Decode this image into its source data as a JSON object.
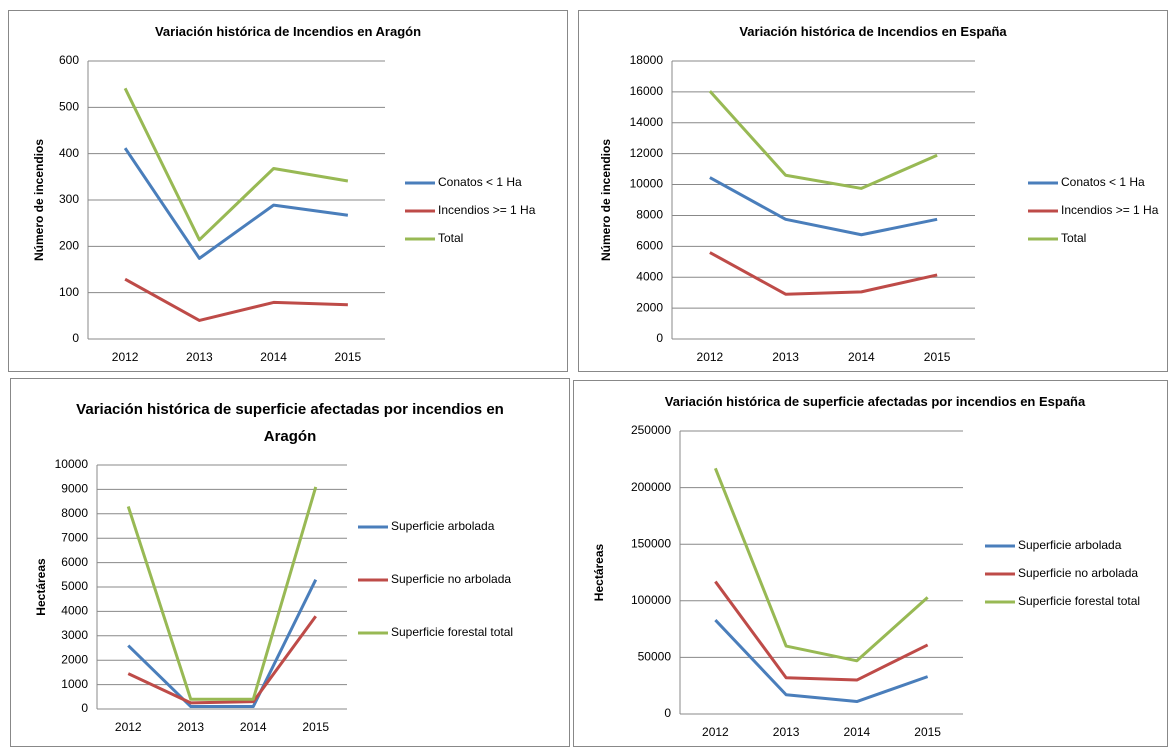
{
  "chart_data": [
    {
      "type": "line",
      "title": "Variación histórica de Incendios en Aragón",
      "y_label": "Número de incendios",
      "categories": [
        "2012",
        "2013",
        "2014",
        "2015"
      ],
      "series": [
        {
          "name": "Conatos < 1 Ha",
          "color": "#4a7ebb",
          "values": [
            412,
            174,
            289,
            267
          ]
        },
        {
          "name": "Incendios >= 1 Ha",
          "color": "#be4b48",
          "values": [
            129,
            40,
            79,
            74
          ]
        },
        {
          "name": "Total",
          "color": "#98b954",
          "values": [
            541,
            214,
            368,
            341
          ]
        }
      ],
      "ylim": [
        0,
        600
      ],
      "yticks": [
        0,
        100,
        200,
        300,
        400,
        500,
        600
      ],
      "grid": true
    },
    {
      "type": "line",
      "title": "Variación histórica de Incendios en España",
      "y_label": "Número de incendios",
      "categories": [
        "2012",
        "2013",
        "2014",
        "2015"
      ],
      "series": [
        {
          "name": "Conatos < 1 Ha",
          "color": "#4a7ebb",
          "values": [
            10450,
            7750,
            6750,
            7750
          ]
        },
        {
          "name": "Incendios >= 1 Ha",
          "color": "#be4b48",
          "values": [
            5600,
            2900,
            3050,
            4150
          ]
        },
        {
          "name": "Total",
          "color": "#98b954",
          "values": [
            16050,
            10600,
            9750,
            11900
          ]
        }
      ],
      "ylim": [
        0,
        18000
      ],
      "yticks": [
        0,
        2000,
        4000,
        6000,
        8000,
        10000,
        12000,
        14000,
        16000,
        18000
      ],
      "grid": true
    },
    {
      "type": "line",
      "title": "Variación histórica de superficie afectadas por incendios en Aragón",
      "y_label": "Hectáreas",
      "categories": [
        "2012",
        "2013",
        "2014",
        "2015"
      ],
      "series": [
        {
          "name": "Superficie arbolada",
          "color": "#4a7ebb",
          "values": [
            2600,
            100,
            100,
            5300
          ]
        },
        {
          "name": "Superficie no arbolada",
          "color": "#be4b48",
          "values": [
            1450,
            250,
            300,
            3800
          ]
        },
        {
          "name": "Superficie forestal total",
          "color": "#98b954",
          "values": [
            8300,
            400,
            400,
            9100
          ]
        }
      ],
      "ylim": [
        0,
        10000
      ],
      "yticks": [
        0,
        1000,
        2000,
        3000,
        4000,
        5000,
        6000,
        7000,
        8000,
        9000,
        10000
      ],
      "grid": true
    },
    {
      "type": "line",
      "title": "Variación histórica de superficie afectadas por incendios en España",
      "y_label": "Hectáreas",
      "categories": [
        "2012",
        "2013",
        "2014",
        "2015"
      ],
      "series": [
        {
          "name": "Superficie arbolada",
          "color": "#4a7ebb",
          "values": [
            83000,
            17000,
            11000,
            33000
          ]
        },
        {
          "name": "Superficie no arbolada",
          "color": "#be4b48",
          "values": [
            117000,
            32000,
            30000,
            61000
          ]
        },
        {
          "name": "Superficie forestal total",
          "color": "#98b954",
          "values": [
            217000,
            60000,
            47000,
            103000
          ]
        }
      ],
      "ylim": [
        0,
        250000
      ],
      "yticks": [
        0,
        50000,
        100000,
        150000,
        200000,
        250000
      ],
      "grid": true
    }
  ]
}
